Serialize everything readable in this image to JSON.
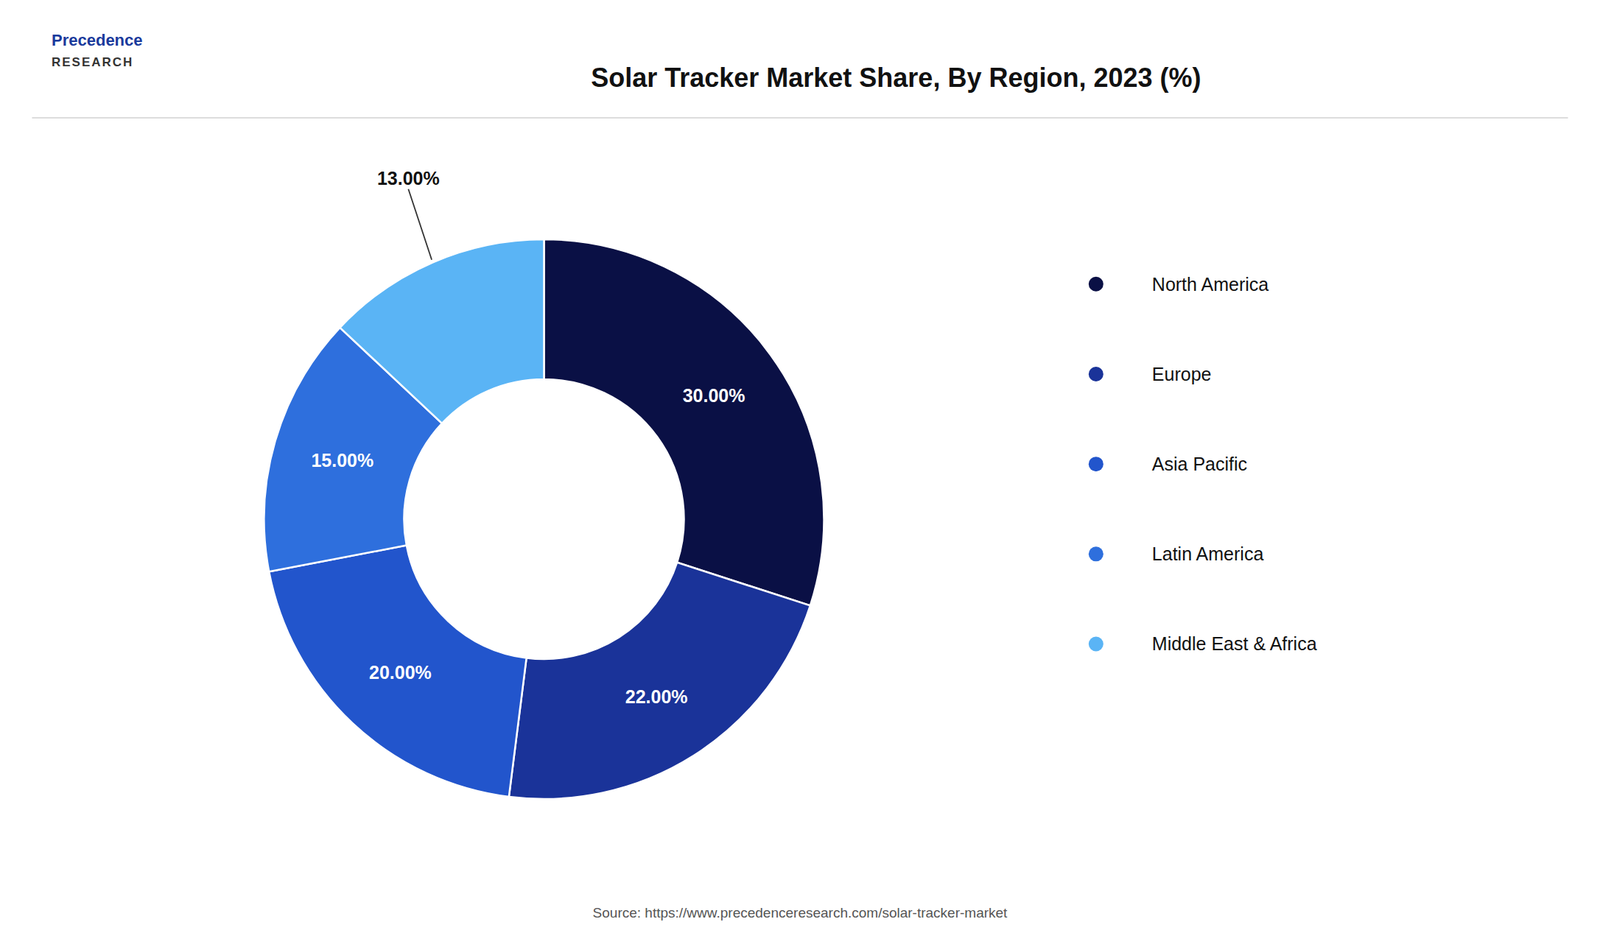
{
  "chart_data": {
    "type": "donut",
    "title": "Solar Tracker Market Share, By Region, 2023 (%)",
    "categories": [
      "North America",
      "Europe",
      "Asia Pacific",
      "Latin America",
      "Middle East & Africa"
    ],
    "values": [
      30.0,
      22.0,
      20.0,
      15.0,
      13.0
    ],
    "value_labels": [
      "30.00%",
      "22.00%",
      "20.00%",
      "15.00%",
      "13.00%"
    ],
    "colors": [
      "#0a1045",
      "#1a3399",
      "#2255cc",
      "#2e6fdd",
      "#5ab4f5"
    ],
    "data_labels": true,
    "legend": "right",
    "annotations": [
      "Precedence",
      "RESEARCH",
      "Source: https://www.precedenceresearch.com/solar-tracker-market"
    ]
  }
}
